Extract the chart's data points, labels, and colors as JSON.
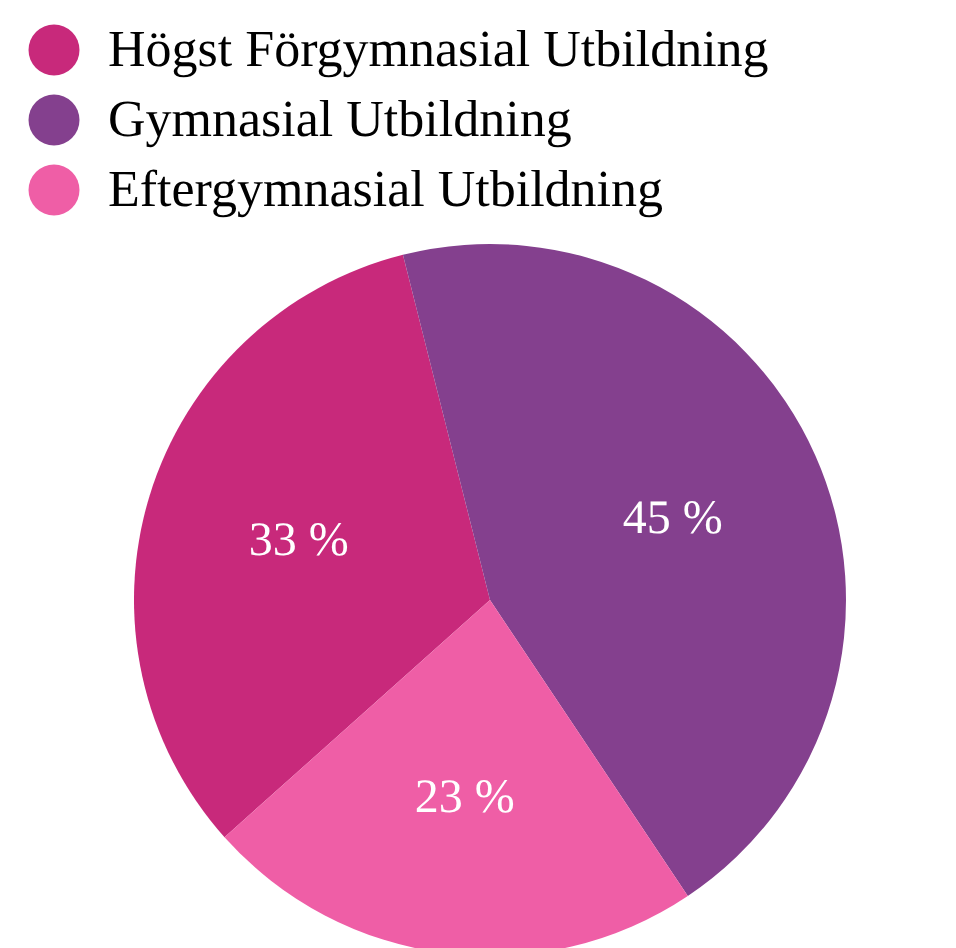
{
  "chart_data": {
    "type": "pie",
    "categories": [
      "Högst Förgymnasial Utbildning",
      "Gymnasial Utbildning",
      "Eftergymnasial Utbildning"
    ],
    "values": [
      33,
      45,
      23
    ],
    "colors": [
      "#c8297b",
      "#84408e",
      "#ef5ea6"
    ],
    "value_labels": [
      "33 %",
      "45 %",
      "23 %"
    ],
    "legend": "top left"
  }
}
